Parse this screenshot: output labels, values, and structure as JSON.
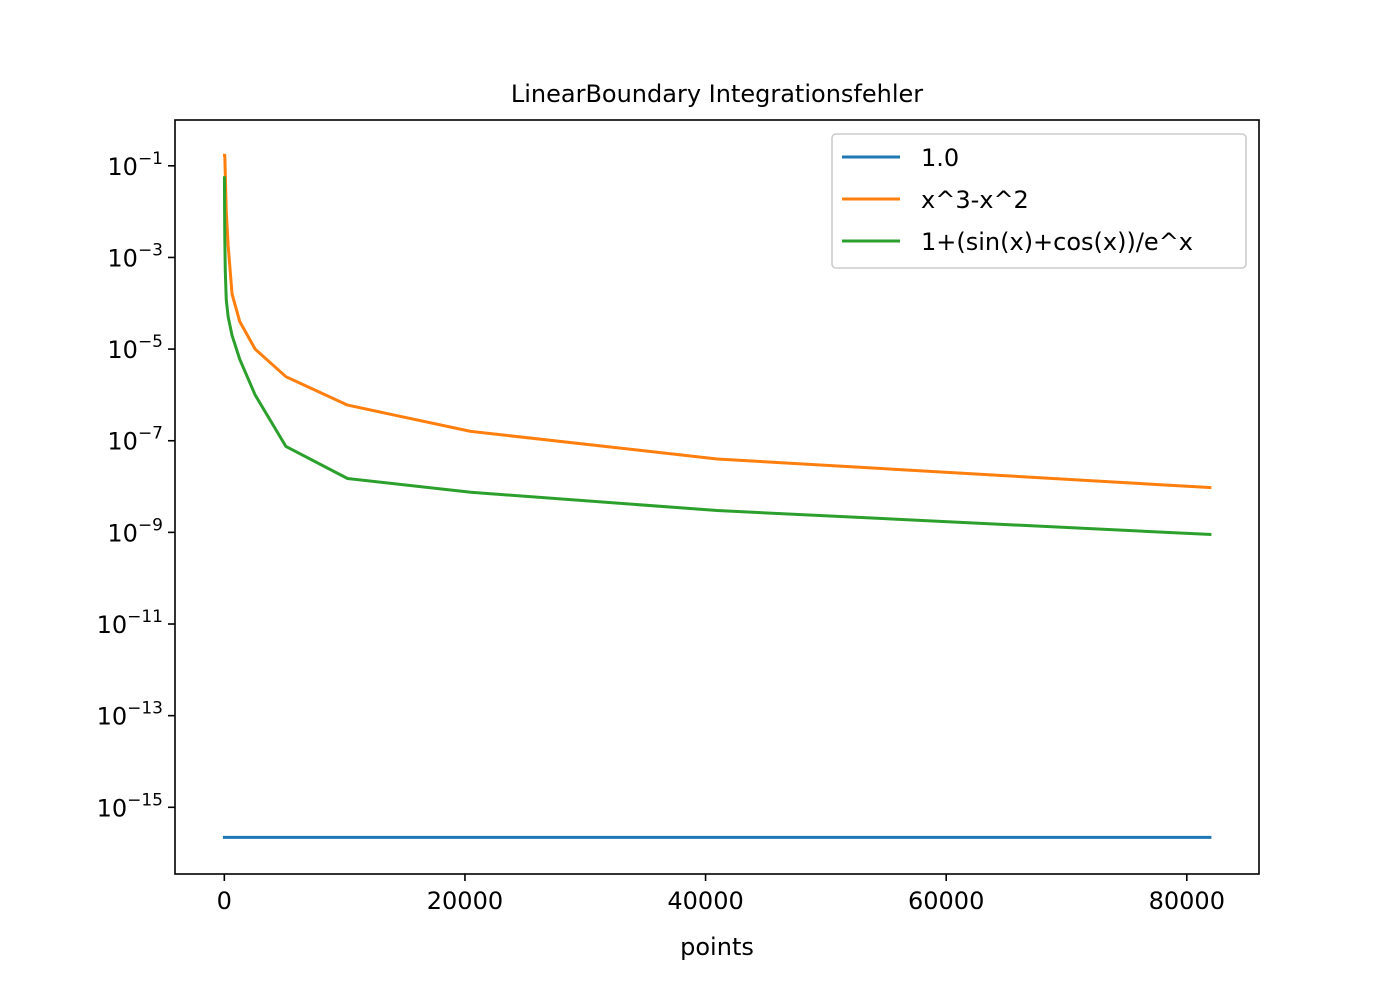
{
  "chart_data": {
    "type": "line",
    "title": "LinearBoundary Integrationsfehler",
    "xlabel": "points",
    "ylabel": "",
    "x_scale": "linear",
    "y_scale": "log",
    "xlim": [
      -4100,
      86000
    ],
    "ylim": [
      3.5e-17,
      1.0
    ],
    "x_ticks": [
      0,
      20000,
      40000,
      60000,
      80000
    ],
    "x_tick_labels": [
      "0",
      "20000",
      "40000",
      "60000",
      "80000"
    ],
    "y_tick_exponents": [
      -1,
      -3,
      -5,
      -7,
      -9,
      -11,
      -13,
      -15
    ],
    "y_tick_labels": [
      "10",
      "10",
      "10",
      "10",
      "10",
      "10",
      "10",
      "10"
    ],
    "y_tick_superscripts": [
      "−1",
      "−3",
      "−5",
      "−7",
      "−9",
      "−11",
      "−13",
      "−15"
    ],
    "grid": false,
    "legend_position": "top-right",
    "series": [
      {
        "name": "1.0",
        "color": "#1f77b4",
        "x": [
          10,
          20,
          40,
          80,
          160,
          320,
          640,
          1280,
          2560,
          5120,
          10240,
          20480,
          40960,
          81920
        ],
        "y": [
          2.2e-16,
          2.2e-16,
          2.2e-16,
          2.2e-16,
          2.2e-16,
          2.2e-16,
          2.2e-16,
          2.2e-16,
          2.2e-16,
          2.2e-16,
          2.2e-16,
          2.2e-16,
          2.2e-16,
          2.2e-16
        ]
      },
      {
        "name": "x^3-x^2",
        "color": "#ff7f0e",
        "x": [
          10,
          20,
          40,
          80,
          160,
          320,
          640,
          1280,
          2560,
          5120,
          10240,
          20480,
          40960,
          81920
        ],
        "y": [
          0.17,
          0.17,
          0.17,
          0.065,
          0.01,
          0.0018,
          0.00016,
          4e-05,
          1e-05,
          2.5e-06,
          6e-07,
          1.6e-07,
          4e-08,
          9.5e-09
        ]
      },
      {
        "name": "1+(sin(x)+cos(x))/e^x",
        "color": "#2ca02c",
        "x": [
          10,
          20,
          40,
          80,
          160,
          320,
          640,
          1280,
          2560,
          5120,
          10240,
          20480,
          40960,
          81920
        ],
        "y": [
          0.055,
          0.012,
          0.0025,
          0.0005,
          0.00012,
          5e-05,
          2e-05,
          6e-06,
          1e-06,
          7.5e-08,
          1.5e-08,
          7.5e-09,
          3e-09,
          9e-10
        ]
      }
    ]
  }
}
